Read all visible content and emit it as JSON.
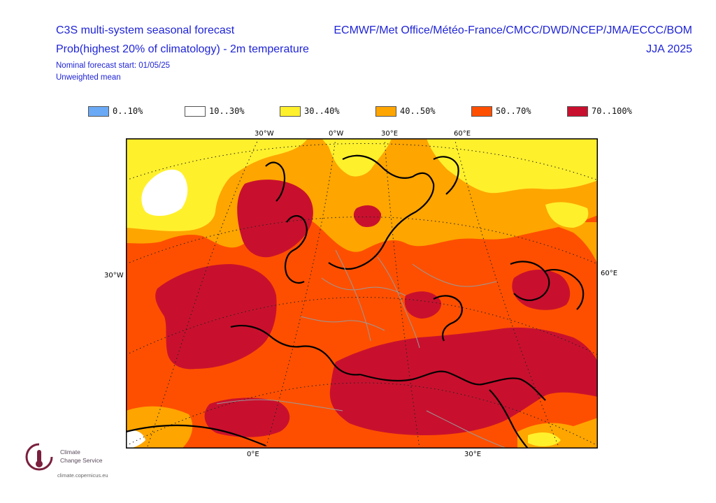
{
  "header": {
    "title": "C3S multi-system seasonal forecast",
    "subtitle": "Prob(highest 20% of climatology) - 2m temperature",
    "forecast_start": "Nominal forecast start: 01/05/25",
    "mean_type": "Unweighted mean",
    "centres": "ECMWF/Met Office/Météo-France/CMCC/DWD/NCEP/JMA/ECCC/BOM",
    "season": "JJA 2025"
  },
  "legend": {
    "items": [
      {
        "label": "0..10%",
        "color": "#6aa9f5"
      },
      {
        "label": "10..30%",
        "color": "#ffffff"
      },
      {
        "label": "30..40%",
        "color": "#fff02c"
      },
      {
        "label": "40..50%",
        "color": "#fea500"
      },
      {
        "label": "50..70%",
        "color": "#fe4f00"
      },
      {
        "label": "70..100%",
        "color": "#c8102e"
      }
    ]
  },
  "axes": {
    "top": [
      "30°W",
      "0°W",
      "30°E",
      "60°E"
    ],
    "left": [
      "30°W"
    ],
    "right": [
      "60°E"
    ],
    "bottom": [
      "0°E",
      "30°E"
    ]
  },
  "logo": {
    "line1": "Climate",
    "line2": "Change Service",
    "url": "climate.copernicus.eu"
  }
}
